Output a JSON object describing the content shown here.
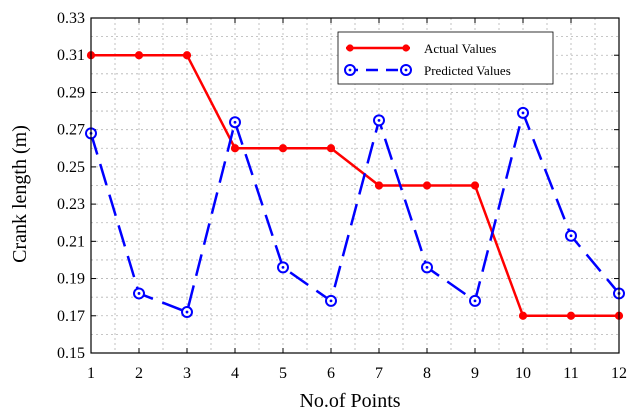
{
  "chart_data": {
    "type": "line",
    "x": [
      1,
      2,
      3,
      4,
      5,
      6,
      7,
      8,
      9,
      10,
      11,
      12
    ],
    "series": [
      {
        "name": "Actual Values",
        "color": "#ff0000",
        "line_style": "solid",
        "marker": "filled-circle",
        "values": [
          0.31,
          0.31,
          0.31,
          0.26,
          0.26,
          0.26,
          0.24,
          0.24,
          0.24,
          0.17,
          0.17,
          0.17
        ]
      },
      {
        "name": "Predicted Values",
        "color": "#0000ff",
        "line_style": "dashed",
        "marker": "open-circle",
        "values": [
          0.268,
          0.182,
          0.172,
          0.274,
          0.196,
          0.178,
          0.275,
          0.196,
          0.178,
          0.279,
          0.213,
          0.182
        ]
      }
    ],
    "xlabel": "No.of Points",
    "ylabel": "Crank length (m)",
    "xlim": [
      1,
      12
    ],
    "ylim": [
      0.15,
      0.33
    ],
    "xticks": [
      "1",
      "2",
      "3",
      "4",
      "5",
      "6",
      "7",
      "8",
      "9",
      "10",
      "11",
      "12"
    ],
    "yticks": [
      "0.15",
      "0.17",
      "0.19",
      "0.21",
      "0.23",
      "0.25",
      "0.27",
      "0.29",
      "0.31",
      "0.33"
    ],
    "grid": true,
    "legend_position": "top-right"
  }
}
